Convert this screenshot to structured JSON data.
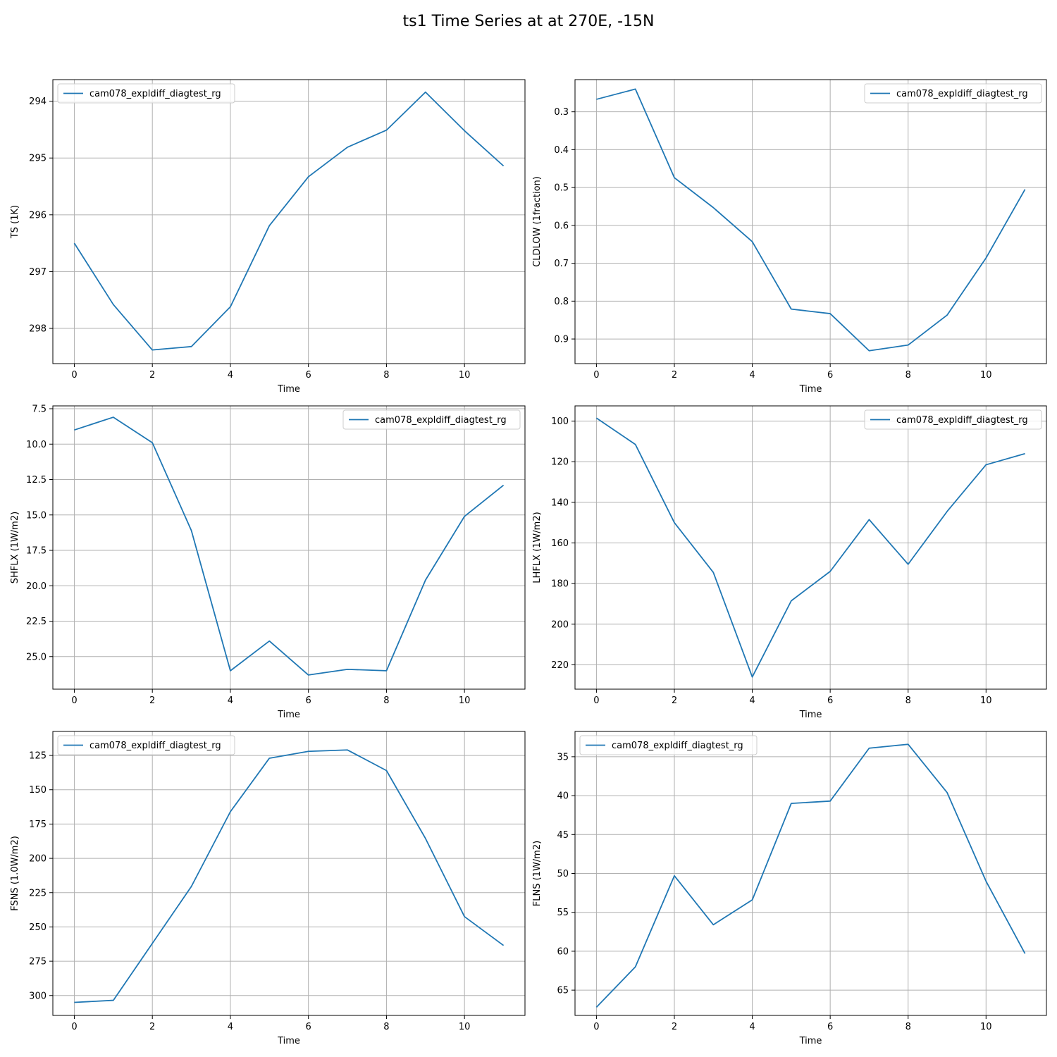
{
  "figure": {
    "title": "ts1 Time Series at at 270E, -15N"
  },
  "colors": {
    "series": "#1f77b4",
    "grid": "#b0b0b0",
    "legend_border": "#cccccc"
  },
  "chart_data": [
    {
      "type": "line",
      "xlabel": "Time",
      "ylabel": "TS (1K)",
      "xlim": [
        -0.55,
        11.55
      ],
      "ylim": [
        298.62,
        293.62
      ],
      "y_inverted": true,
      "xticks": [
        0,
        2,
        4,
        6,
        8,
        10
      ],
      "yticks": [
        294,
        295,
        296,
        297,
        298
      ],
      "grid": true,
      "legend_loc": "upper left",
      "series": [
        {
          "name": "cam078_expldiff_diagtest_rg",
          "x": [
            0,
            1,
            2,
            3,
            4,
            5,
            6,
            7,
            8,
            9,
            10,
            11
          ],
          "y": [
            296.5,
            297.58,
            298.38,
            298.32,
            297.62,
            296.19,
            295.33,
            294.81,
            294.51,
            293.84,
            294.52,
            295.14
          ]
        }
      ]
    },
    {
      "type": "line",
      "xlabel": "Time",
      "ylabel": "CLDLOW (1fraction)",
      "xlim": [
        -0.55,
        11.55
      ],
      "ylim": [
        0.965,
        0.215
      ],
      "y_inverted": true,
      "xticks": [
        0,
        2,
        4,
        6,
        8,
        10
      ],
      "yticks": [
        0.3,
        0.4,
        0.5,
        0.6,
        0.7,
        0.8,
        0.9
      ],
      "grid": true,
      "legend_loc": "upper right",
      "series": [
        {
          "name": "cam078_expldiff_diagtest_rg",
          "x": [
            0,
            1,
            2,
            3,
            4,
            5,
            6,
            7,
            8,
            9,
            10,
            11
          ],
          "y": [
            0.267,
            0.24,
            0.474,
            0.553,
            0.643,
            0.821,
            0.833,
            0.931,
            0.916,
            0.837,
            0.686,
            0.505
          ]
        }
      ]
    },
    {
      "type": "line",
      "xlabel": "Time",
      "ylabel": "SHFLX (1W/m2)",
      "xlim": [
        -0.55,
        11.55
      ],
      "ylim": [
        27.3,
        7.3
      ],
      "y_inverted": true,
      "xticks": [
        0,
        2,
        4,
        6,
        8,
        10
      ],
      "yticks": [
        7.5,
        10.0,
        12.5,
        15.0,
        17.5,
        20.0,
        22.5,
        25.0
      ],
      "grid": true,
      "legend_loc": "upper right",
      "series": [
        {
          "name": "cam078_expldiff_diagtest_rg",
          "x": [
            0,
            1,
            2,
            3,
            4,
            5,
            6,
            7,
            8,
            9,
            10,
            11
          ],
          "y": [
            9.0,
            8.1,
            9.9,
            16.1,
            26.0,
            23.9,
            26.3,
            25.9,
            26.0,
            19.6,
            15.1,
            12.9
          ]
        }
      ]
    },
    {
      "type": "line",
      "xlabel": "Time",
      "ylabel": "LHFLX (1W/m2)",
      "xlim": [
        -0.55,
        11.55
      ],
      "ylim": [
        232,
        92.5
      ],
      "y_inverted": true,
      "xticks": [
        0,
        2,
        4,
        6,
        8,
        10
      ],
      "yticks": [
        100,
        120,
        140,
        160,
        180,
        200,
        220
      ],
      "grid": true,
      "legend_loc": "upper right",
      "series": [
        {
          "name": "cam078_expldiff_diagtest_rg",
          "x": [
            0,
            1,
            2,
            3,
            4,
            5,
            6,
            7,
            8,
            9,
            10,
            11
          ],
          "y": [
            98.5,
            111.5,
            150.0,
            174.5,
            226.0,
            188.5,
            174.0,
            148.5,
            170.5,
            144.5,
            121.5,
            116.0
          ]
        }
      ]
    },
    {
      "type": "line",
      "xlabel": "Time",
      "ylabel": "FSNS (1.0W/m2)",
      "xlim": [
        -0.55,
        11.55
      ],
      "ylim": [
        314.5,
        107.5
      ],
      "y_inverted": true,
      "xticks": [
        0,
        2,
        4,
        6,
        8,
        10
      ],
      "yticks": [
        125,
        150,
        175,
        200,
        225,
        250,
        275,
        300
      ],
      "grid": true,
      "legend_loc": "upper left",
      "series": [
        {
          "name": "cam078_expldiff_diagtest_rg",
          "x": [
            0,
            1,
            2,
            3,
            4,
            5,
            6,
            7,
            8,
            9,
            10,
            11
          ],
          "y": [
            305.0,
            303.5,
            262.0,
            220.5,
            166.0,
            127.0,
            122.0,
            121.0,
            136.0,
            185.5,
            242.5,
            263.5
          ]
        }
      ]
    },
    {
      "type": "line",
      "xlabel": "Time",
      "ylabel": "FLNS (1W/m2)",
      "xlim": [
        -0.55,
        11.55
      ],
      "ylim": [
        68.25,
        31.75
      ],
      "y_inverted": true,
      "xticks": [
        0,
        2,
        4,
        6,
        8,
        10
      ],
      "yticks": [
        35,
        40,
        45,
        50,
        55,
        60,
        65
      ],
      "grid": true,
      "legend_loc": "upper left",
      "series": [
        {
          "name": "cam078_expldiff_diagtest_rg",
          "x": [
            0,
            1,
            2,
            3,
            4,
            5,
            6,
            7,
            8,
            9,
            10,
            11
          ],
          "y": [
            67.2,
            62.0,
            50.3,
            56.6,
            53.4,
            41.0,
            40.7,
            33.9,
            33.4,
            39.6,
            51.0,
            60.3
          ]
        }
      ]
    }
  ]
}
